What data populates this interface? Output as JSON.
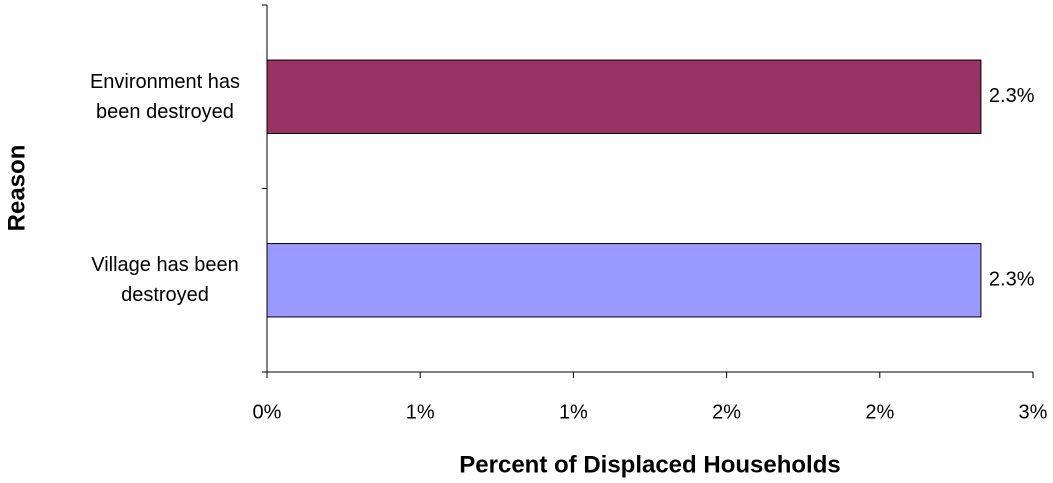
{
  "chart_data": {
    "type": "barh",
    "categories": [
      "Environment has been destroyed",
      "Village has been destroyed"
    ],
    "values": [
      2.33,
      2.33
    ],
    "value_labels": [
      "2.3%",
      "2.3%"
    ],
    "colors": [
      "#993366",
      "#9999ff"
    ],
    "xlabel": "Percent of Displaced Households",
    "ylabel": "Reason",
    "xlim": [
      0,
      2.5
    ],
    "xticks": [
      {
        "value": 0,
        "label": "0%"
      },
      {
        "value": 0.5,
        "label": "1%"
      },
      {
        "value": 1,
        "label": "1%"
      },
      {
        "value": 1.5,
        "label": "2%"
      },
      {
        "value": 2,
        "label": "2%"
      },
      {
        "value": 2.5,
        "label": "3%"
      }
    ]
  }
}
